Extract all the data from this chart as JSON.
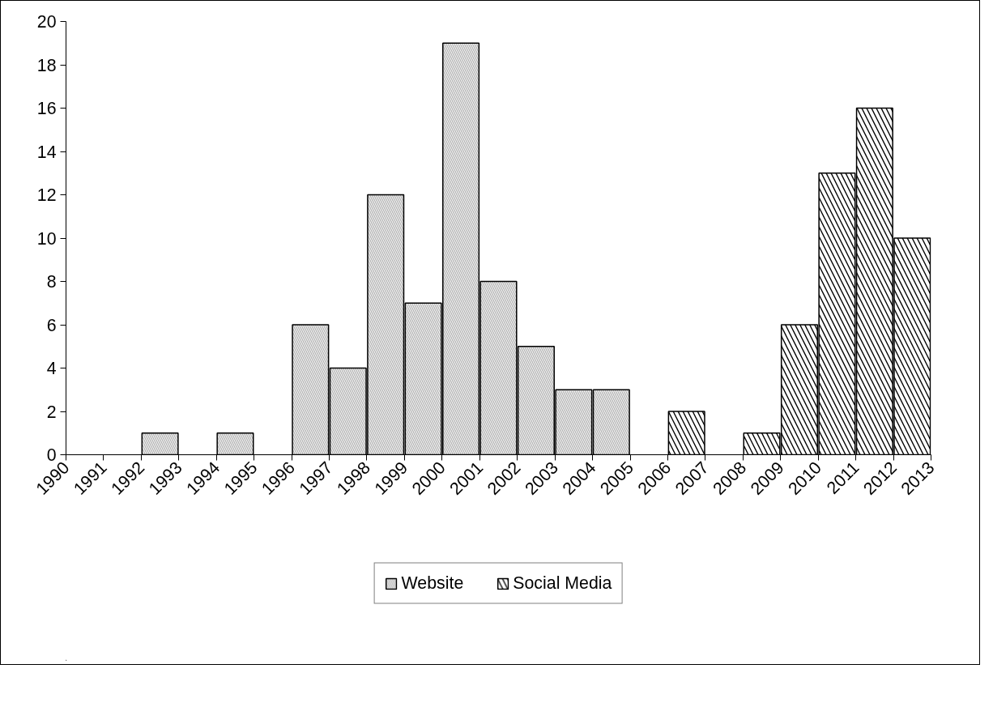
{
  "chart_data": {
    "type": "bar",
    "categories": [
      "1990",
      "1991",
      "1992",
      "1993",
      "1994",
      "1995",
      "1996",
      "1997",
      "1998",
      "1999",
      "2000",
      "2001",
      "2002",
      "2003",
      "2004",
      "2005",
      "2006",
      "2007",
      "2008",
      "2009",
      "2010",
      "2011",
      "2012",
      "2013"
    ],
    "series": [
      {
        "name": "Website",
        "color": "#b3b3b3",
        "values": [
          null,
          null,
          1,
          null,
          1,
          null,
          6,
          4,
          12,
          7,
          19,
          8,
          5,
          3,
          3,
          null,
          null,
          null,
          null,
          null,
          null,
          null,
          null,
          null
        ]
      },
      {
        "name": "Social Media",
        "color": "#000000",
        "values": [
          null,
          null,
          null,
          null,
          null,
          null,
          null,
          null,
          null,
          null,
          null,
          null,
          null,
          null,
          null,
          null,
          2,
          null,
          1,
          6,
          13,
          16,
          10,
          null
        ]
      }
    ],
    "ylim": [
      0,
      20
    ],
    "yticks": [
      0,
      2,
      4,
      6,
      8,
      10,
      12,
      14,
      16,
      18,
      20
    ],
    "grid": false,
    "legend": "bottom"
  }
}
